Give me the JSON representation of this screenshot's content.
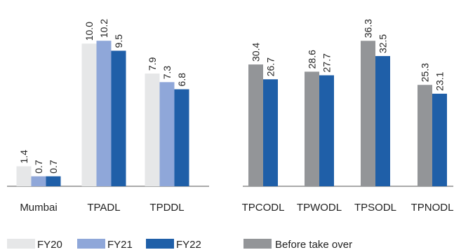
{
  "chart_data": [
    {
      "type": "bar",
      "categories": [
        "Mumbai",
        "TPADL",
        "TPDDL"
      ],
      "series": [
        {
          "name": "FY20",
          "values": [
            1.4,
            10.0,
            7.9
          ],
          "labels": [
            "1.4",
            "10.0",
            "7.9"
          ],
          "color": "#e6e7e8"
        },
        {
          "name": "FY21",
          "values": [
            0.7,
            10.2,
            7.3
          ],
          "labels": [
            "0.7",
            "10.2",
            "7.3"
          ],
          "color": "#8fa7d9"
        },
        {
          "name": "FY22",
          "values": [
            0.7,
            9.5,
            6.8
          ],
          "labels": [
            "0.7",
            "9.5",
            "6.8"
          ],
          "color": "#1f5fa8"
        }
      ],
      "ylim": [
        0,
        10.7
      ],
      "grid": false,
      "legend": "bottom"
    },
    {
      "type": "bar",
      "categories": [
        "TPCODL",
        "TPWODL",
        "TPSODL",
        "TPNODL"
      ],
      "series": [
        {
          "name": "Before take over",
          "values": [
            30.4,
            28.6,
            36.3,
            25.3
          ],
          "labels": [
            "30.4",
            "28.6",
            "36.3",
            "25.3"
          ],
          "color": "#939598"
        },
        {
          "name": "",
          "values": [
            26.7,
            27.7,
            32.5,
            23.1
          ],
          "labels": [
            "26.7",
            "27.7",
            "32.5",
            "23.1"
          ],
          "color": "#1f5fa8"
        }
      ],
      "ylim": [
        0,
        38.1
      ],
      "grid": false,
      "legend": "bottom"
    }
  ]
}
